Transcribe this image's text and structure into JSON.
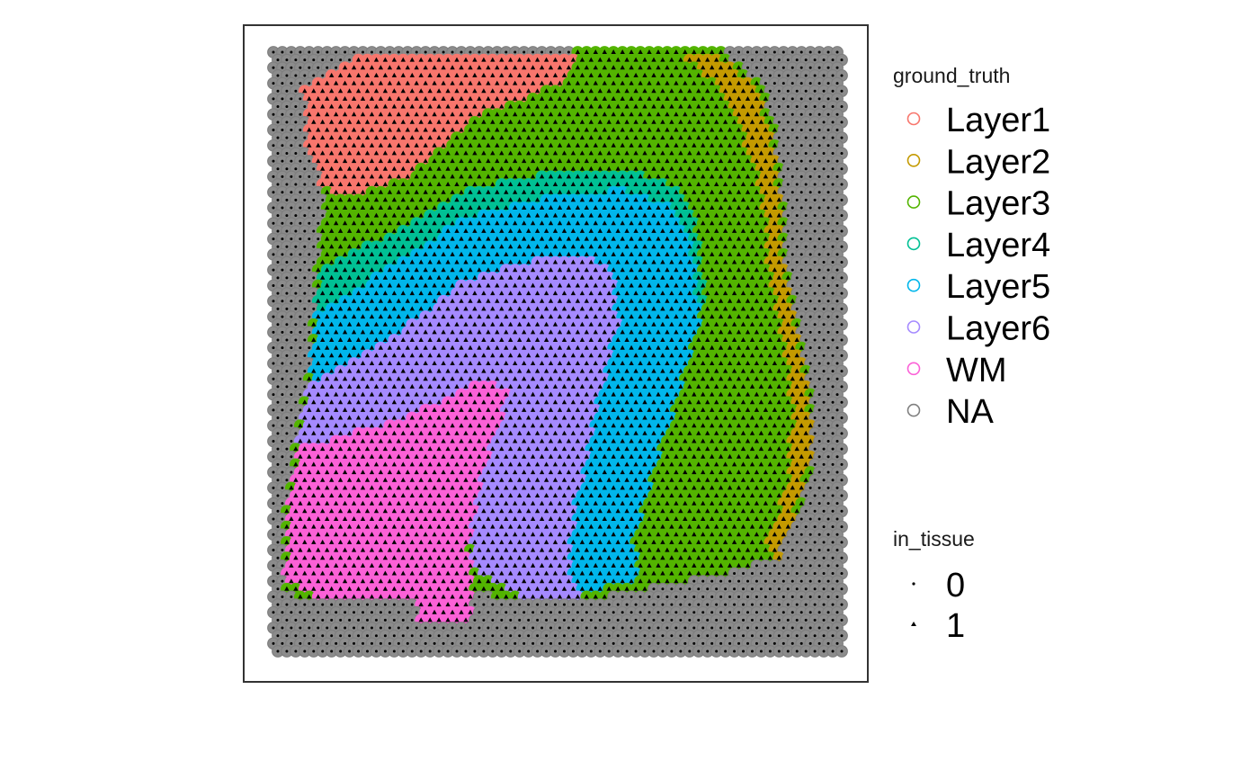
{
  "chart_data": {
    "type": "scatter",
    "title": "",
    "xlabel": "",
    "ylabel": "",
    "grid": false,
    "axes_visible": false,
    "legend_placement": "right",
    "panel_border_color": "#333333",
    "spot_grid": {
      "cols": 64,
      "rows": 78,
      "pattern": "hexagonal"
    },
    "ground_truth_legend": {
      "title": "ground_truth",
      "entries": [
        {
          "label": "Layer1",
          "color": "#F8766D"
        },
        {
          "label": "Layer2",
          "color": "#C49A00"
        },
        {
          "label": "Layer3",
          "color": "#53B400"
        },
        {
          "label": "Layer4",
          "color": "#00C094"
        },
        {
          "label": "Layer5",
          "color": "#00B6EB"
        },
        {
          "label": "Layer6",
          "color": "#A58AFF"
        },
        {
          "label": "WM",
          "color": "#FB61D7"
        },
        {
          "label": "NA",
          "color": "#7F7F7F"
        }
      ]
    },
    "in_tissue_legend": {
      "title": "in_tissue",
      "entries": [
        {
          "label": "0",
          "shape": "circle-dot"
        },
        {
          "label": "1",
          "shape": "triangle"
        }
      ]
    }
  }
}
